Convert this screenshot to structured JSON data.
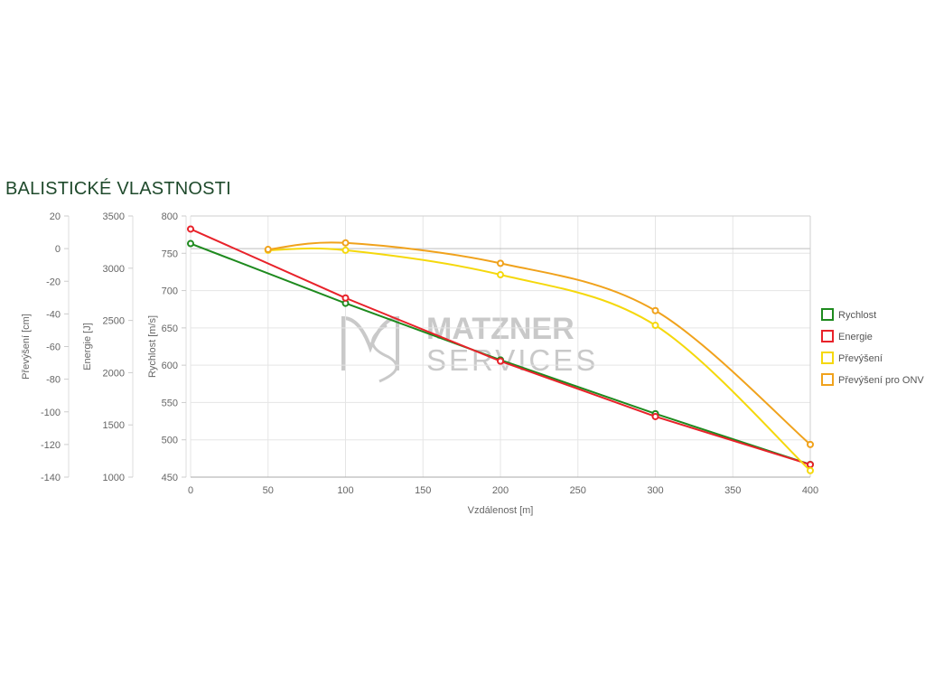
{
  "title": "BALISTICKÉ VLASTNOSTI",
  "watermark": {
    "line1": "MATZNER",
    "line2": "SERVICES",
    "color": "#c9c9c9"
  },
  "chart_data": {
    "type": "line",
    "xlabel": "Vzdálenost [m]",
    "x_ticks": [
      0,
      50,
      100,
      150,
      200,
      250,
      300,
      350,
      400
    ],
    "xlim": [
      0,
      400
    ],
    "grid": true,
    "legend_position": "right",
    "axes": [
      {
        "id": "elev",
        "label": "Převýšení [cm]",
        "ticks": [
          20,
          0,
          -20,
          -40,
          -60,
          -80,
          -100,
          -120,
          -140
        ],
        "ylim": [
          -140,
          20
        ]
      },
      {
        "id": "energy",
        "label": "Energie [J]",
        "ticks": [
          3500,
          3000,
          2500,
          2000,
          1500,
          1000
        ],
        "ylim": [
          1000,
          3500
        ]
      },
      {
        "id": "vel",
        "label": "Rychlost [m/s]",
        "ticks": [
          800,
          750,
          700,
          650,
          600,
          550,
          500,
          450
        ],
        "ylim": [
          450,
          800
        ]
      }
    ],
    "series": [
      {
        "name": "Rychlost",
        "axis": "vel",
        "color": "#1e8a1e",
        "smooth": false,
        "points": [
          [
            0,
            763
          ],
          [
            100,
            683
          ],
          [
            200,
            607
          ],
          [
            300,
            535
          ],
          [
            400,
            467
          ]
        ]
      },
      {
        "name": "Energie",
        "axis": "energy",
        "color": "#e8222a",
        "smooth": false,
        "points": [
          [
            0,
            3375
          ],
          [
            100,
            2715
          ],
          [
            200,
            2110
          ],
          [
            300,
            1580
          ],
          [
            400,
            1120
          ]
        ]
      },
      {
        "name": "Převýšení",
        "axis": "elev",
        "color": "#f5d80c",
        "smooth": true,
        "points": [
          [
            50,
            -1
          ],
          [
            100,
            -1
          ],
          [
            200,
            -16
          ],
          [
            300,
            -47
          ],
          [
            400,
            -136
          ]
        ]
      },
      {
        "name": "Převýšení pro ONV",
        "axis": "elev",
        "color": "#f0a21c",
        "smooth": true,
        "points": [
          [
            50,
            -0.5
          ],
          [
            100,
            3.5
          ],
          [
            200,
            -9
          ],
          [
            300,
            -38
          ],
          [
            400,
            -120
          ]
        ]
      }
    ]
  }
}
